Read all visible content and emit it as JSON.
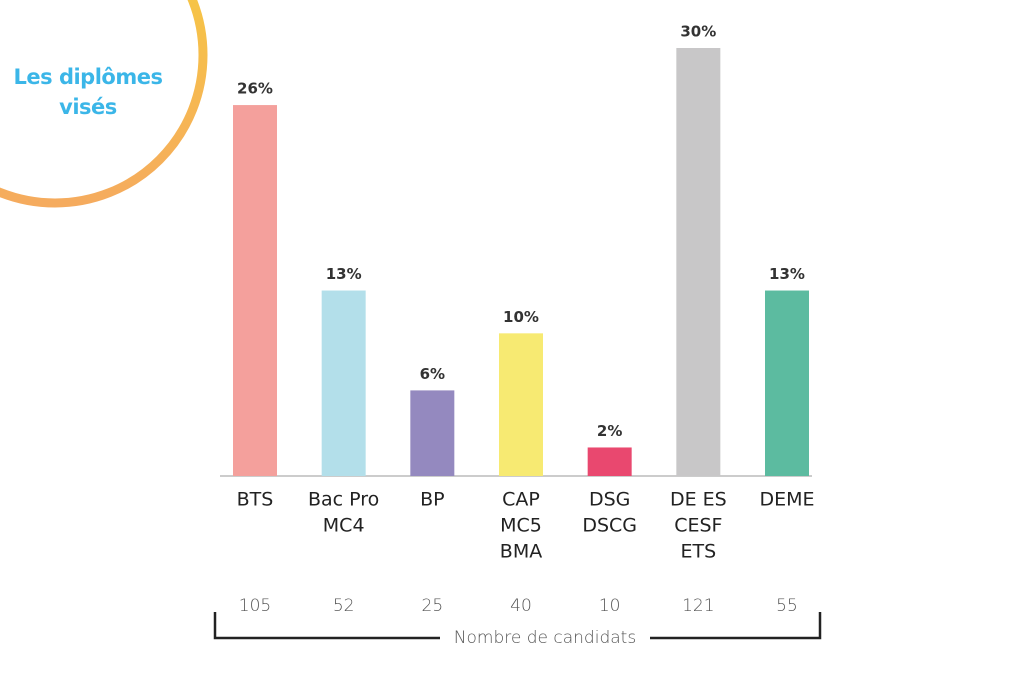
{
  "chart_data": {
    "type": "bar",
    "title": [
      "Les diplômes",
      "visés"
    ],
    "categories": [
      [
        "BTS"
      ],
      [
        "Bac Pro",
        "MC4"
      ],
      [
        "BP"
      ],
      [
        "CAP",
        "MC5",
        "BMA"
      ],
      [
        "DSG",
        "DSCG"
      ],
      [
        "DE ES",
        "CESF",
        "ETS"
      ],
      [
        "DEME"
      ]
    ],
    "values": [
      26,
      13,
      6,
      10,
      2,
      30,
      13
    ],
    "value_labels": [
      "26%",
      "13%",
      "6%",
      "10%",
      "2%",
      "30%",
      "13%"
    ],
    "colors": [
      "#f4a09c",
      "#b3dfea",
      "#9489bf",
      "#f7ea72",
      "#e9486f",
      "#c8c7c8",
      "#5cbba0"
    ],
    "counts": [
      105,
      52,
      25,
      40,
      10,
      121,
      55
    ],
    "counts_label": "Nombre de candidats"
  }
}
